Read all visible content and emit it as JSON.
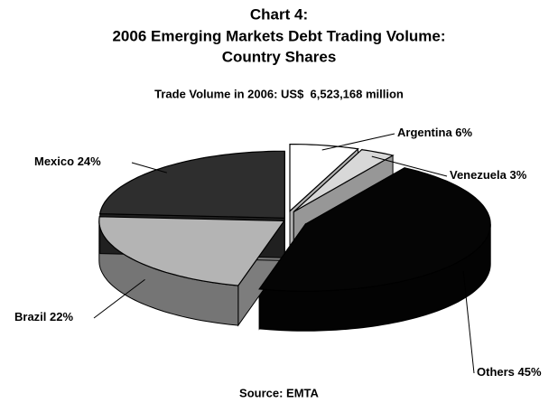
{
  "chart_data": {
    "type": "pie3d",
    "title": [
      "Chart 4:",
      "2006 Emerging Markets Debt Trading Volume:",
      "Country Shares"
    ],
    "subtitle": "Trade Volume in 2006: US$  6,523,168 million",
    "source": "Source: EMTA",
    "categories": [
      "Argentina",
      "Venezuela",
      "Others",
      "Brazil",
      "Mexico"
    ],
    "values": [
      6,
      3,
      45,
      22,
      24
    ],
    "value_labels": [
      "6%",
      "3%",
      "45%",
      "22%",
      "24%"
    ],
    "colors": [
      "#ffffff",
      "#d8d8d8",
      "#050505",
      "#b4b4b4",
      "#2e2e2e"
    ]
  }
}
